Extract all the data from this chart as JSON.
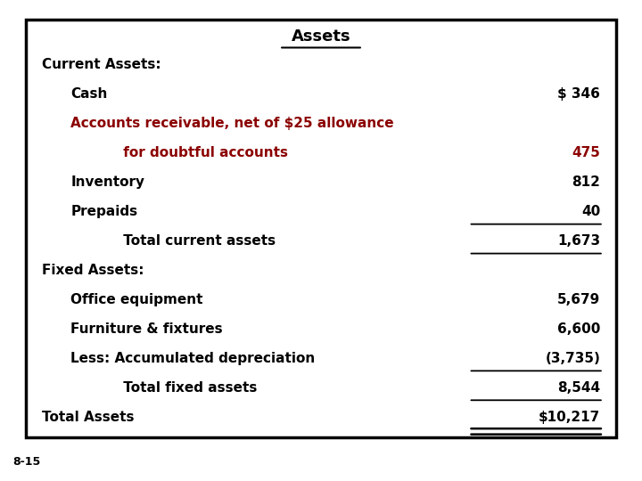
{
  "title": "Assets",
  "bg_color": "#ffffff",
  "box_color": "#000000",
  "footer": "8-15",
  "rows": [
    {
      "label": "Current Assets:",
      "value": "",
      "indent": 0,
      "bold": true,
      "color": "black",
      "underline": false,
      "double_underline": false
    },
    {
      "label": "Cash",
      "value": "$ 346",
      "indent": 1,
      "bold": true,
      "color": "black",
      "underline": false,
      "double_underline": false
    },
    {
      "label": "Accounts receivable, net of $25 allowance",
      "value": "",
      "indent": 1,
      "bold": true,
      "color": "#8B0000",
      "underline": false,
      "double_underline": false
    },
    {
      "label": "     for doubtful accounts",
      "value": "475",
      "indent": 2,
      "bold": true,
      "color": "#8B0000",
      "underline": false,
      "double_underline": false
    },
    {
      "label": "Inventory",
      "value": "812",
      "indent": 1,
      "bold": true,
      "color": "black",
      "underline": false,
      "double_underline": false
    },
    {
      "label": "Prepaids",
      "value": "40",
      "indent": 1,
      "bold": true,
      "color": "black",
      "underline": true,
      "double_underline": false
    },
    {
      "label": "     Total current assets",
      "value": "1,673",
      "indent": 2,
      "bold": true,
      "color": "black",
      "underline": true,
      "double_underline": false
    },
    {
      "label": "Fixed Assets:",
      "value": "",
      "indent": 0,
      "bold": true,
      "color": "black",
      "underline": false,
      "double_underline": false
    },
    {
      "label": "Office equipment",
      "value": "5,679",
      "indent": 1,
      "bold": true,
      "color": "black",
      "underline": false,
      "double_underline": false
    },
    {
      "label": "Furniture & fixtures",
      "value": "6,600",
      "indent": 1,
      "bold": true,
      "color": "black",
      "underline": false,
      "double_underline": false
    },
    {
      "label": "Less: Accumulated depreciation",
      "value": "(3,735)",
      "indent": 1,
      "bold": true,
      "color": "black",
      "underline": true,
      "double_underline": false
    },
    {
      "label": "     Total fixed assets",
      "value": "8,544",
      "indent": 2,
      "bold": true,
      "color": "black",
      "underline": true,
      "double_underline": false
    },
    {
      "label": "Total Assets",
      "value": "$10,217",
      "indent": 0,
      "bold": true,
      "color": "black",
      "underline": false,
      "double_underline": true
    }
  ]
}
